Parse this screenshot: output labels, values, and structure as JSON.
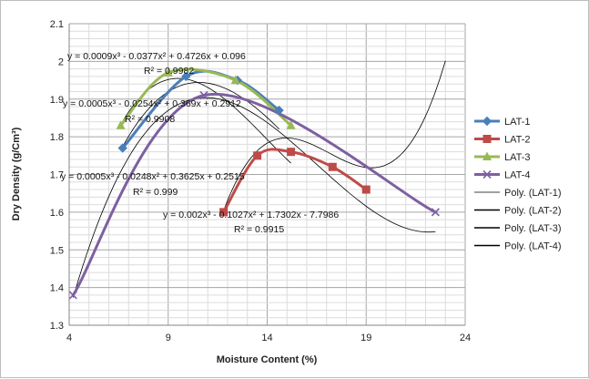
{
  "chart_data": {
    "type": "scatter",
    "xlabel": "Moisture Content (%)",
    "ylabel": "Dry Density (g/Cm³)",
    "xlim": [
      4,
      24
    ],
    "ylim": [
      1.3,
      2.1
    ],
    "x_ticks": [
      "4",
      "9",
      "14",
      "19",
      "24"
    ],
    "y_ticks": [
      "1.3",
      "1.4",
      "1.5",
      "1.6",
      "1.7",
      "1.8",
      "1.9",
      "2",
      "2.1"
    ],
    "grid": true,
    "legend_position": "right",
    "series": [
      {
        "name": "LAT-1",
        "color": "#4a7ebb",
        "marker": "diamond",
        "x": [
          6.7,
          9.9,
          12.5,
          14.6
        ],
        "y": [
          1.77,
          1.96,
          1.95,
          1.87
        ]
      },
      {
        "name": "LAT-2",
        "color": "#be4b48",
        "marker": "square",
        "x": [
          11.8,
          13.5,
          15.2,
          17.3,
          19.0
        ],
        "y": [
          1.6,
          1.75,
          1.76,
          1.72,
          1.66
        ]
      },
      {
        "name": "LAT-3",
        "color": "#98b954",
        "marker": "triangle",
        "x": [
          6.6,
          9.0,
          12.4,
          15.2
        ],
        "y": [
          1.83,
          1.97,
          1.95,
          1.83
        ]
      },
      {
        "name": "LAT-4",
        "color": "#7d60a0",
        "marker": "x",
        "x": [
          4.2,
          10.8,
          22.5
        ],
        "y": [
          1.38,
          1.91,
          1.6
        ]
      }
    ],
    "trendlines": [
      {
        "name": "Poly. (LAT-1)",
        "coeffs": [
          0.0005,
          -0.0254,
          0.369,
          0.2912
        ],
        "range": [
          6.7,
          14.6
        ],
        "equation": "y = 0.0005x³ - 0.0254x² + 0.369x + 0.2912",
        "r2": "R² = 0.9908"
      },
      {
        "name": "Poly. (LAT-2)",
        "coeffs": [
          0.002,
          -0.1027,
          1.7302,
          -7.7986
        ],
        "range": [
          11.8,
          23.0
        ],
        "equation": "y = 0.002x³ - 0.1027x² + 1.7302x - 7.7986",
        "r2": "R² = 0.9915"
      },
      {
        "name": "Poly. (LAT-3)",
        "coeffs": [
          0.0009,
          -0.0377,
          0.4726,
          0.096
        ],
        "range": [
          6.6,
          15.2
        ],
        "equation": "y = 0.0009x³ - 0.0377x² + 0.4726x + 0.096",
        "r2": "R² = 0.9982"
      },
      {
        "name": "Poly. (LAT-4)",
        "coeffs": [
          0.0005,
          -0.0248,
          0.3625,
          0.2515
        ],
        "range": [
          4.2,
          22.5
        ],
        "equation": "y = 0.0005x³ - 0.0248x² + 0.3625x + 0.2515",
        "r2": "R² = 0.999"
      }
    ]
  }
}
